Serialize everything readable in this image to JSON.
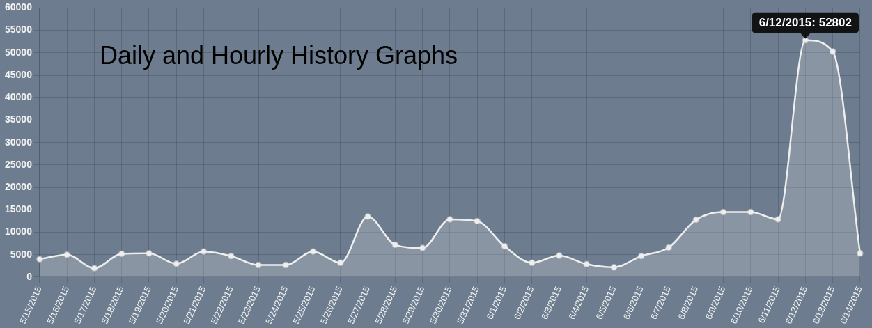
{
  "chart_data": {
    "type": "area",
    "title": "Daily and Hourly History Graphs",
    "categories": [
      "5/15/2015",
      "5/16/2015",
      "5/17/2015",
      "5/18/2015",
      "5/19/2015",
      "5/20/2015",
      "5/21/2015",
      "5/22/2015",
      "5/23/2015",
      "5/24/2015",
      "5/25/2015",
      "5/26/2015",
      "5/27/2015",
      "5/28/2015",
      "5/29/2015",
      "5/30/2015",
      "5/31/2015",
      "6/1/2015",
      "6/2/2015",
      "6/3/2015",
      "6/4/2015",
      "6/5/2015",
      "6/6/2015",
      "6/7/2015",
      "6/8/2015",
      "6/9/2015",
      "6/10/2015",
      "6/11/2015",
      "6/12/2015",
      "6/13/2015",
      "6/14/2015"
    ],
    "series": [
      {
        "color": "#eeeeee",
        "values": [
          4000,
          5000,
          2000,
          5200,
          5300,
          3000,
          5700,
          4700,
          2700,
          2700,
          5700,
          3200,
          13500,
          7200,
          6500,
          12900,
          12500,
          6900,
          3200,
          4800,
          2900,
          2200,
          4700,
          6600,
          12800,
          14500,
          14500,
          12900,
          52802,
          50300,
          5300
        ]
      }
    ],
    "ylim": [
      0,
      60000
    ],
    "yticks": [
      0,
      5000,
      10000,
      15000,
      20000,
      25000,
      30000,
      35000,
      40000,
      45000,
      50000,
      55000,
      60000
    ],
    "grid": true,
    "marker": "circle",
    "legend": false,
    "annotations": [
      {
        "text": "6/12/2015: 52802",
        "x": "6/12/2015",
        "y": 52802
      }
    ]
  }
}
